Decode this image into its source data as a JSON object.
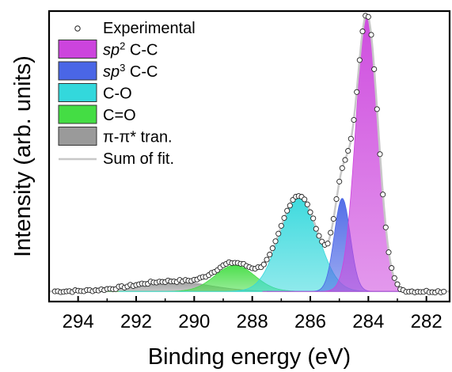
{
  "chart_data": {
    "type": "line",
    "xlabel": "Binding energy (eV)",
    "ylabel": "Intensity (arb. units)",
    "xlim": [
      295,
      281.2
    ],
    "x_reversed": true,
    "ylim": [
      0,
      1.0
    ],
    "xticks": [
      294,
      292,
      290,
      288,
      286,
      284,
      282
    ],
    "grid": false,
    "legend_position": "top-left",
    "baseline": 0.035,
    "legend": [
      {
        "key": "exp",
        "parts": [
          {
            "text": "Experimental",
            "italic": false
          }
        ],
        "marker": "circle"
      },
      {
        "key": "sp2",
        "parts": [
          {
            "text": "sp",
            "italic": true
          },
          {
            "text": "2",
            "sup": true
          },
          {
            "text": " C-C",
            "italic": false
          }
        ],
        "marker": "fill",
        "color": "#cc44dd"
      },
      {
        "key": "sp3",
        "parts": [
          {
            "text": "sp",
            "italic": true
          },
          {
            "text": "3",
            "sup": true
          },
          {
            "text": " C-C",
            "italic": false
          }
        ],
        "marker": "fill",
        "color": "#4a66e6"
      },
      {
        "key": "co",
        "parts": [
          {
            "text": "C-O",
            "italic": false
          }
        ],
        "marker": "fill",
        "color": "#33d8dc"
      },
      {
        "key": "c2o",
        "parts": [
          {
            "text": "C=O",
            "italic": false
          }
        ],
        "marker": "fill",
        "color": "#44dd44"
      },
      {
        "key": "pi",
        "parts": [
          {
            "text": "π-π* tran.",
            "italic": false
          }
        ],
        "marker": "fill",
        "color": "#9a9a9a"
      },
      {
        "key": "sum",
        "parts": [
          {
            "text": "Sum of fit.",
            "italic": false
          }
        ],
        "marker": "line",
        "color": "#c8c8c8"
      }
    ],
    "peaks": [
      {
        "key": "pi",
        "name": "π-π* tran.",
        "center": 290.8,
        "height": 0.035,
        "fwhm": 3.0,
        "color": "#9a9a9a"
      },
      {
        "key": "c2o",
        "name": "C=O",
        "center": 288.6,
        "height": 0.09,
        "fwhm": 1.6,
        "color": "#44dd44"
      },
      {
        "key": "co",
        "name": "C-O",
        "center": 286.4,
        "height": 0.33,
        "fwhm": 1.55,
        "color": "#33d8dc"
      },
      {
        "key": "sp3",
        "name": "sp3 C-C",
        "center": 284.9,
        "height": 0.32,
        "fwhm": 0.65,
        "color": "#4a66e6"
      },
      {
        "key": "sp2",
        "name": "sp2 C-C",
        "center": 284.05,
        "height": 0.95,
        "fwhm": 0.9,
        "color": "#cc44dd"
      }
    ],
    "sum_color": "#c8c8c8",
    "experimental_x_range": [
      294.8,
      281.3
    ],
    "experimental_step": 0.1
  }
}
